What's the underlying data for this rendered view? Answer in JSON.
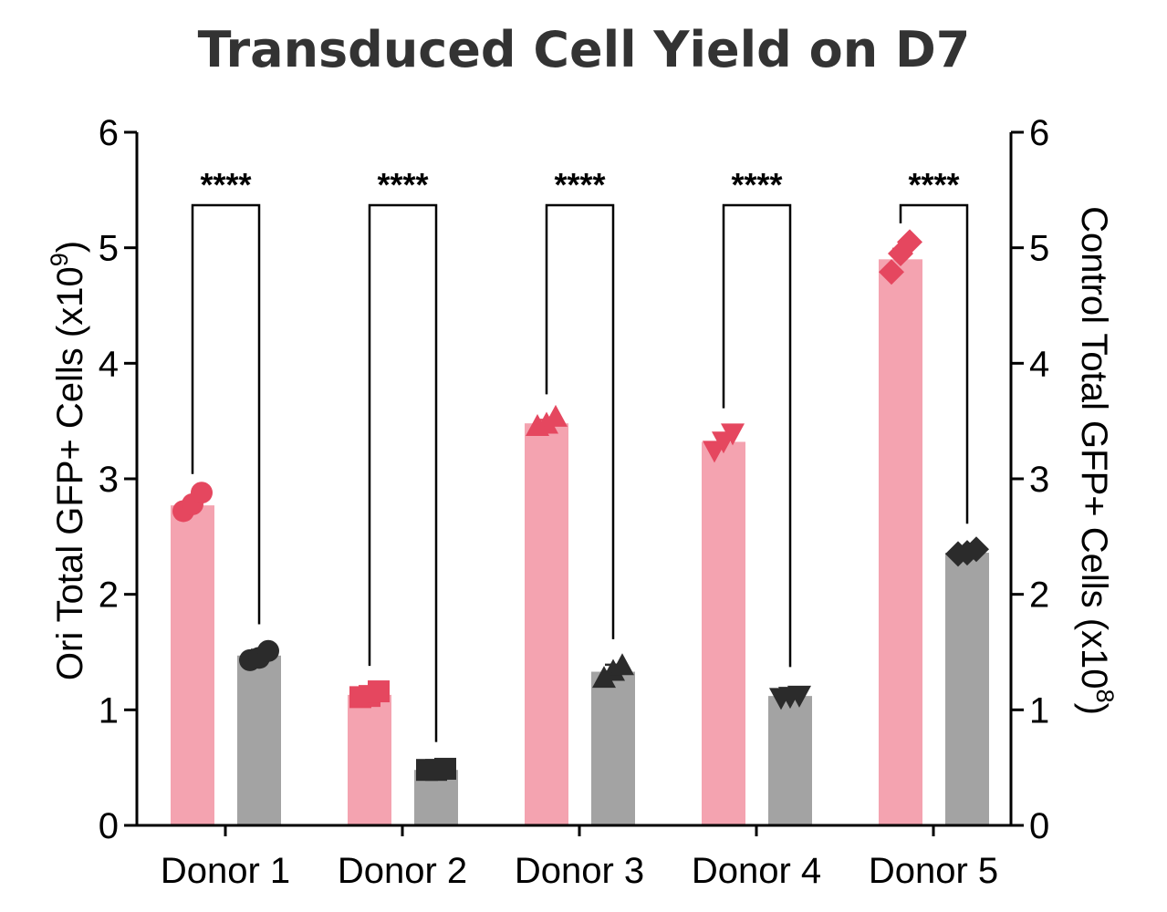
{
  "chart_data": {
    "type": "bar",
    "title": "Transduced Cell Yield on D7",
    "categories": [
      "Donor 1",
      "Donor 2",
      "Donor 3",
      "Donor 4",
      "Donor 5"
    ],
    "ylabel_left": {
      "text": "Ori Total GFP+ Cells (x10",
      "sup": "9",
      "close": ")"
    },
    "ylabel_right": {
      "text": "Control Total GFP+ Cells (x10",
      "sup": "8",
      "close": ")"
    },
    "ylim_left": [
      0,
      6
    ],
    "ylim_right": [
      0,
      6
    ],
    "yticks": [
      "0",
      "1",
      "2",
      "3",
      "4",
      "5",
      "6"
    ],
    "grid": false,
    "colors": {
      "ori_bar": "#f4a3b0",
      "ori_marker": "#e5475f",
      "control_bar": "#a3a3a3",
      "control_marker": "#2b2b2b"
    },
    "markers": [
      "circle",
      "square",
      "triangle-up",
      "triangle-down",
      "diamond"
    ],
    "series": [
      {
        "axis": "left",
        "values": [
          2.77,
          1.13,
          3.48,
          3.32,
          4.9
        ],
        "errors": [
          0.05,
          0.03,
          0.03,
          0.07,
          0.09
        ],
        "points": [
          [
            2.72,
            2.78,
            2.88
          ],
          [
            1.11,
            1.12,
            1.16
          ],
          [
            3.45,
            3.47,
            3.53
          ],
          [
            3.25,
            3.33,
            3.4
          ],
          [
            4.79,
            4.95,
            5.05
          ]
        ]
      },
      {
        "axis": "right",
        "values": [
          1.47,
          0.48,
          1.33,
          1.12,
          2.36
        ],
        "errors": [
          0.05,
          0.02,
          0.06,
          0.03,
          0.03
        ],
        "points": [
          [
            1.43,
            1.45,
            1.51
          ],
          [
            0.48,
            0.48,
            0.49
          ],
          [
            1.27,
            1.33,
            1.38
          ],
          [
            1.11,
            1.12,
            1.13
          ],
          [
            2.35,
            2.36,
            2.39
          ]
        ]
      }
    ],
    "significance": [
      "****",
      "****",
      "****",
      "****",
      "****"
    ]
  }
}
